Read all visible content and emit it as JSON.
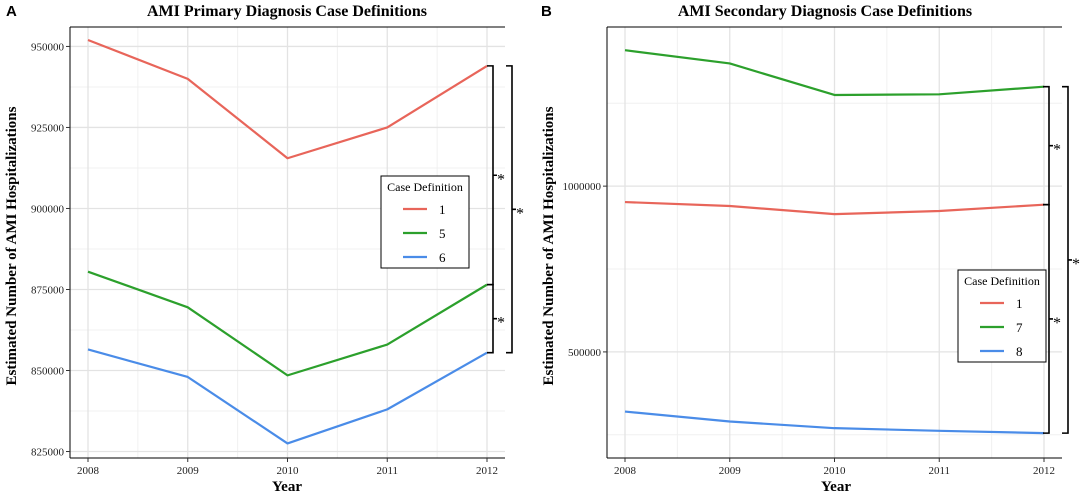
{
  "chart_data": [
    {
      "type": "line",
      "panel_letter": "A",
      "title": "AMI Primary Diagnosis Case Definitions",
      "xlabel": "Year",
      "ylabel": "Estimated Number of AMI Hospitalizations",
      "x": [
        2008,
        2009,
        2010,
        2011,
        2012
      ],
      "x_tick_labels": [
        "2008",
        "2009",
        "2010",
        "2011",
        "2012"
      ],
      "y_ticks": [
        825000,
        850000,
        875000,
        900000,
        925000,
        950000
      ],
      "y_tick_labels": [
        "825000",
        "850000",
        "875000",
        "900000",
        "925000",
        "950000"
      ],
      "ylim": [
        823000,
        956000
      ],
      "grid": true,
      "legend": {
        "title": "Case Definition",
        "position": "right-middle",
        "entries": [
          "1",
          "5",
          "6"
        ]
      },
      "series": [
        {
          "name": "1",
          "color": "#e8655a",
          "values": [
            952000,
            940000,
            915500,
            925000,
            944000
          ]
        },
        {
          "name": "5",
          "color": "#2ca02c",
          "values": [
            880500,
            869500,
            848500,
            858000,
            876500
          ]
        },
        {
          "name": "6",
          "color": "#4a8ce8",
          "values": [
            856500,
            848000,
            827500,
            838000,
            855500
          ]
        }
      ],
      "significance": [
        {
          "label": "*",
          "from_series": "1",
          "to_series": "5",
          "level": 1
        },
        {
          "label": "*",
          "from_series": "5",
          "to_series": "6",
          "level": 1
        },
        {
          "label": "*",
          "from_series": "1",
          "to_series": "6",
          "level": 2
        }
      ]
    },
    {
      "type": "line",
      "panel_letter": "B",
      "title": "AMI Secondary Diagnosis Case Definitions",
      "xlabel": "Year",
      "ylabel": "Estimated Number of AMI Hospitalizations",
      "x": [
        2008,
        2009,
        2010,
        2011,
        2012
      ],
      "x_tick_labels": [
        "2008",
        "2009",
        "2010",
        "2011",
        "2012"
      ],
      "y_ticks": [
        500000,
        1000000
      ],
      "y_tick_labels": [
        "500000",
        "1000000"
      ],
      "ylim": [
        180000,
        1480000
      ],
      "grid": true,
      "legend": {
        "title": "Case Definition",
        "position": "bottom-right",
        "entries": [
          "1",
          "7",
          "8"
        ]
      },
      "series": [
        {
          "name": "1",
          "color": "#e8655a",
          "values": [
            952000,
            940000,
            915500,
            925000,
            944000
          ]
        },
        {
          "name": "7",
          "color": "#2ca02c",
          "values": [
            1410000,
            1370000,
            1275000,
            1277000,
            1300000
          ]
        },
        {
          "name": "8",
          "color": "#4a8ce8",
          "values": [
            320000,
            290000,
            270000,
            262000,
            255000
          ]
        }
      ],
      "significance": [
        {
          "label": "*",
          "from_series": "7",
          "to_series": "1",
          "level": 1
        },
        {
          "label": "*",
          "from_series": "1",
          "to_series": "8",
          "level": 1
        },
        {
          "label": "*",
          "from_series": "7",
          "to_series": "8",
          "level": 2
        }
      ]
    }
  ]
}
